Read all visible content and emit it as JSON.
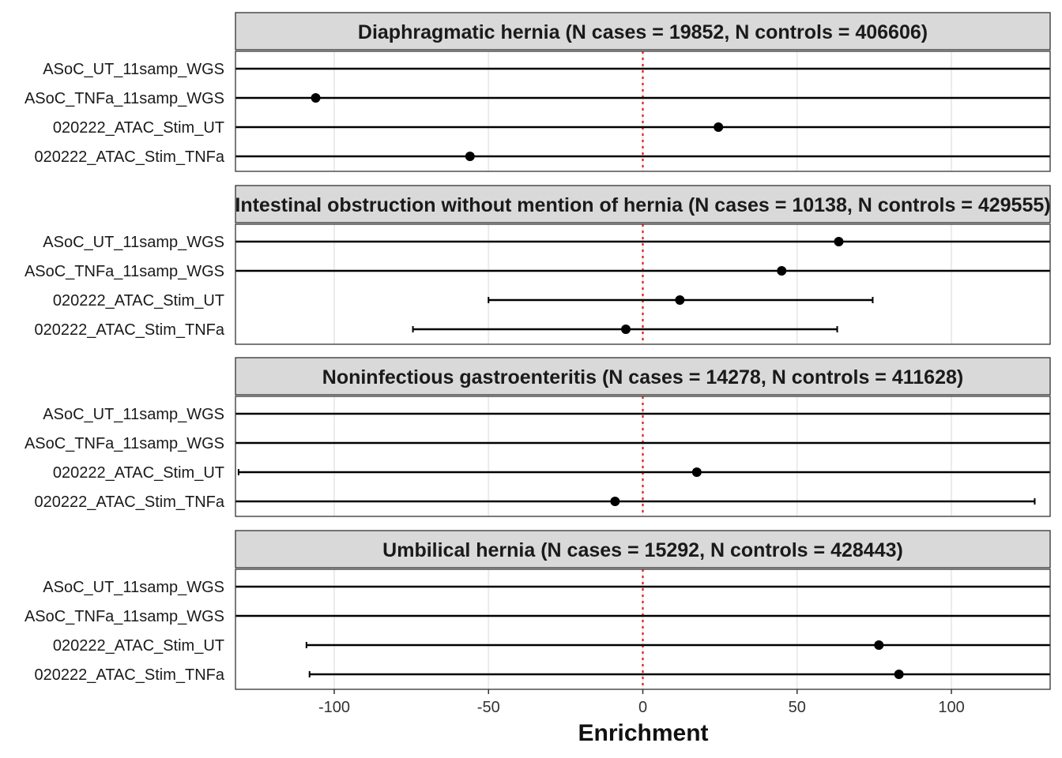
{
  "chart_data": {
    "type": "forest",
    "xlabel": "Enrichment",
    "xlim": [
      -132,
      132
    ],
    "x_ticks": [
      -100,
      -50,
      0,
      50,
      100
    ],
    "x_tick_labels": [
      "-100",
      "-50",
      "0",
      "50",
      "100"
    ],
    "reference_line": 0,
    "grid": true,
    "colors": {
      "strip_bg": "#d9d9d9",
      "reference": "#e41a1c",
      "points": "#000000",
      "grid": "#ebebeb"
    },
    "categories": [
      "ASoC_UT_11samp_WGS",
      "ASoC_TNFa_11samp_WGS",
      "020222_ATAC_Stim_UT",
      "020222_ATAC_Stim_TNFa"
    ],
    "panels": [
      {
        "title": "Diaphragmatic hernia (N cases = 19852, N controls = 406606)",
        "rows": [
          {
            "label": "ASoC_UT_11samp_WGS",
            "estimate": null,
            "lower": -132,
            "upper": 132,
            "lower_capped": false,
            "upper_capped": false
          },
          {
            "label": "ASoC_TNFa_11samp_WGS",
            "estimate": -106,
            "lower": -132,
            "upper": 132,
            "lower_capped": false,
            "upper_capped": false
          },
          {
            "label": "020222_ATAC_Stim_UT",
            "estimate": 24.5,
            "lower": -132,
            "upper": 132,
            "lower_capped": false,
            "upper_capped": false
          },
          {
            "label": "020222_ATAC_Stim_TNFa",
            "estimate": -56,
            "lower": -132,
            "upper": 132,
            "lower_capped": false,
            "upper_capped": false
          }
        ]
      },
      {
        "title": "Intestinal obstruction without mention of hernia (N cases = 10138, N controls = 429555)",
        "rows": [
          {
            "label": "ASoC_UT_11samp_WGS",
            "estimate": 63.5,
            "lower": -132,
            "upper": 132,
            "lower_capped": false,
            "upper_capped": false
          },
          {
            "label": "ASoC_TNFa_11samp_WGS",
            "estimate": 45,
            "lower": -132,
            "upper": 132,
            "lower_capped": false,
            "upper_capped": false
          },
          {
            "label": "020222_ATAC_Stim_UT",
            "estimate": 12,
            "lower": -50,
            "upper": 74.5,
            "lower_capped": true,
            "upper_capped": true
          },
          {
            "label": "020222_ATAC_Stim_TNFa",
            "estimate": -5.5,
            "lower": -74.5,
            "upper": 63,
            "lower_capped": true,
            "upper_capped": true
          }
        ]
      },
      {
        "title": "Noninfectious gastroenteritis (N cases = 14278, N controls = 411628)",
        "rows": [
          {
            "label": "ASoC_UT_11samp_WGS",
            "estimate": null,
            "lower": -132,
            "upper": 132,
            "lower_capped": false,
            "upper_capped": false
          },
          {
            "label": "ASoC_TNFa_11samp_WGS",
            "estimate": null,
            "lower": -132,
            "upper": 132,
            "lower_capped": false,
            "upper_capped": false
          },
          {
            "label": "020222_ATAC_Stim_UT",
            "estimate": 17.5,
            "lower": -131,
            "upper": 132,
            "lower_capped": true,
            "upper_capped": false
          },
          {
            "label": "020222_ATAC_Stim_TNFa",
            "estimate": -9,
            "lower": -132,
            "upper": 127,
            "lower_capped": false,
            "upper_capped": true
          }
        ]
      },
      {
        "title": "Umbilical hernia (N cases = 15292, N controls = 428443)",
        "rows": [
          {
            "label": "ASoC_UT_11samp_WGS",
            "estimate": null,
            "lower": -132,
            "upper": 132,
            "lower_capped": false,
            "upper_capped": false
          },
          {
            "label": "ASoC_TNFa_11samp_WGS",
            "estimate": null,
            "lower": -132,
            "upper": 132,
            "lower_capped": false,
            "upper_capped": false
          },
          {
            "label": "020222_ATAC_Stim_UT",
            "estimate": 76.5,
            "lower": -109,
            "upper": 132,
            "lower_capped": true,
            "upper_capped": false
          },
          {
            "label": "020222_ATAC_Stim_TNFa",
            "estimate": 83,
            "lower": -108,
            "upper": 132,
            "lower_capped": true,
            "upper_capped": false
          }
        ]
      }
    ]
  }
}
